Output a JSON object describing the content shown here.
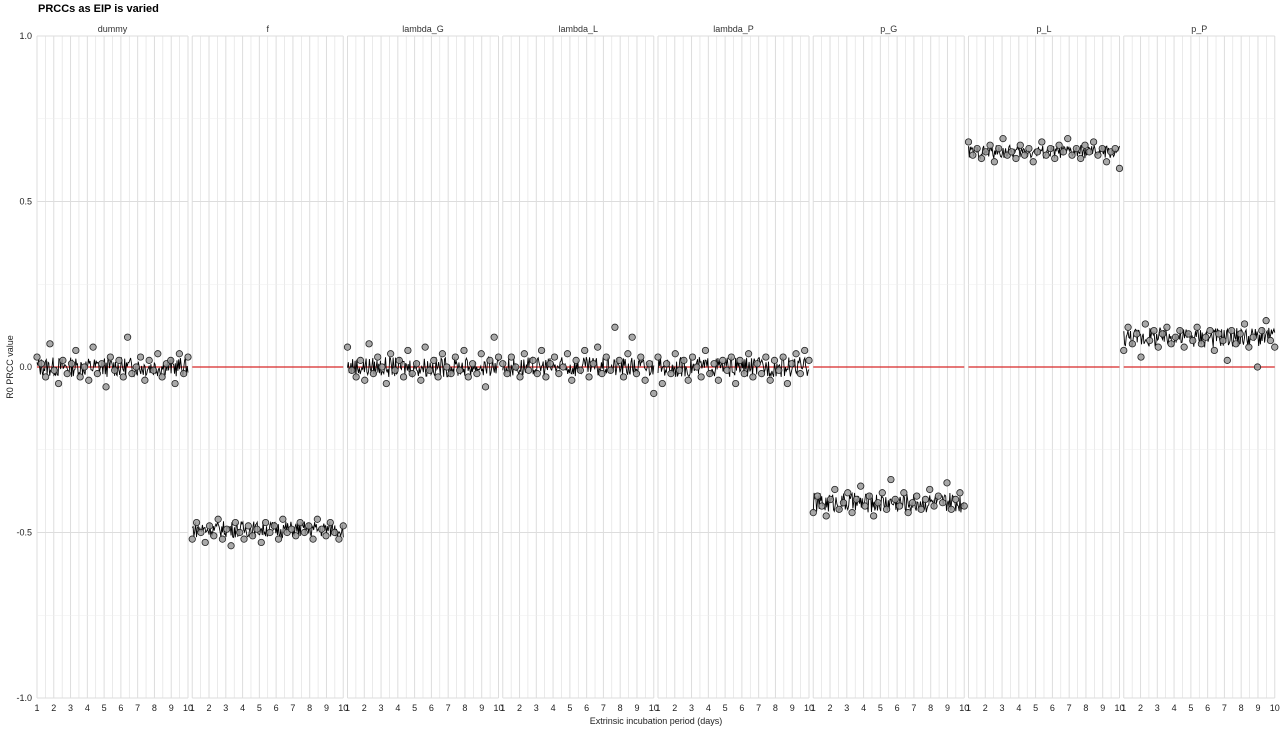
{
  "chart_data": {
    "type": "line",
    "title": "PRCCs as EIP is varied",
    "xlabel": "Extrinsic incubation period (days)",
    "ylabel": "R0 PRCC value",
    "ylim": [
      -1.0,
      1.0
    ],
    "yticks": [
      "1.0",
      "0.5",
      "0.0",
      "-0.5",
      "-1.0"
    ],
    "ytick_values": [
      1.0,
      0.5,
      0.0,
      -0.5,
      -1.0
    ],
    "xlim": [
      1,
      10
    ],
    "xticks": [
      "1",
      "2",
      "3",
      "4",
      "5",
      "6",
      "7",
      "8",
      "9",
      "10"
    ],
    "reference_line": 0.0,
    "colors": {
      "reference": "#d62728",
      "line": "#000000",
      "point_fill": "#9a9a9a",
      "grid": "#dddddd"
    },
    "grid": true,
    "panels": [
      {
        "name": "dummy",
        "mean": 0.0,
        "spread": 0.03,
        "values": [
          0.03,
          0.01,
          -0.03,
          0.07,
          -0.01,
          -0.05,
          0.02,
          -0.02,
          0.01,
          0.05,
          -0.03,
          0.0,
          -0.04,
          0.06,
          -0.02,
          0.01,
          -0.06,
          0.03,
          -0.01,
          0.02,
          -0.03,
          0.09,
          -0.02,
          0.0,
          0.03,
          -0.04,
          0.02,
          -0.01,
          0.04,
          -0.03,
          0.01,
          0.02,
          -0.05,
          0.04,
          -0.02,
          0.03
        ]
      },
      {
        "name": "f",
        "mean": -0.49,
        "spread": 0.025,
        "values": [
          -0.52,
          -0.47,
          -0.5,
          -0.53,
          -0.48,
          -0.51,
          -0.46,
          -0.52,
          -0.49,
          -0.54,
          -0.47,
          -0.5,
          -0.52,
          -0.48,
          -0.51,
          -0.49,
          -0.53,
          -0.47,
          -0.5,
          -0.48,
          -0.52,
          -0.46,
          -0.5,
          -0.49,
          -0.51,
          -0.47,
          -0.5,
          -0.48,
          -0.52,
          -0.46,
          -0.49,
          -0.51,
          -0.47,
          -0.5,
          -0.52,
          -0.48
        ]
      },
      {
        "name": "lambda_G",
        "mean": 0.0,
        "spread": 0.03,
        "values": [
          0.06,
          -0.01,
          -0.03,
          0.02,
          -0.04,
          0.07,
          -0.02,
          0.03,
          0.0,
          -0.05,
          0.04,
          -0.01,
          0.02,
          -0.03,
          0.05,
          -0.02,
          0.01,
          -0.04,
          0.06,
          -0.01,
          0.02,
          -0.03,
          0.04,
          0.0,
          -0.02,
          0.03,
          -0.01,
          0.05,
          -0.03,
          0.01,
          -0.02,
          0.04,
          -0.06,
          0.02,
          0.09,
          0.03
        ]
      },
      {
        "name": "lambda_L",
        "mean": 0.0,
        "spread": 0.03,
        "values": [
          0.01,
          -0.02,
          0.03,
          0.0,
          -0.03,
          0.04,
          -0.01,
          0.02,
          -0.02,
          0.05,
          -0.03,
          0.01,
          0.03,
          -0.02,
          0.0,
          0.04,
          -0.04,
          0.02,
          -0.01,
          0.05,
          -0.03,
          0.01,
          0.06,
          -0.02,
          0.03,
          -0.01,
          0.12,
          0.02,
          -0.03,
          0.04,
          0.09,
          -0.02,
          0.03,
          -0.04,
          0.01,
          -0.08
        ]
      },
      {
        "name": "lambda_P",
        "mean": 0.0,
        "spread": 0.03,
        "values": [
          0.03,
          -0.05,
          0.01,
          -0.02,
          0.04,
          -0.01,
          0.02,
          -0.04,
          0.03,
          0.0,
          -0.03,
          0.05,
          -0.02,
          0.01,
          -0.04,
          0.02,
          -0.01,
          0.03,
          -0.05,
          0.02,
          -0.02,
          0.04,
          -0.03,
          0.01,
          -0.02,
          0.03,
          -0.04,
          0.02,
          -0.01,
          0.03,
          -0.05,
          0.01,
          0.04,
          -0.02,
          0.05,
          0.02
        ]
      },
      {
        "name": "p_G",
        "mean": -0.41,
        "spread": 0.03,
        "values": [
          -0.44,
          -0.39,
          -0.42,
          -0.45,
          -0.4,
          -0.37,
          -0.43,
          -0.41,
          -0.38,
          -0.44,
          -0.4,
          -0.36,
          -0.42,
          -0.39,
          -0.45,
          -0.41,
          -0.38,
          -0.43,
          -0.34,
          -0.4,
          -0.42,
          -0.38,
          -0.44,
          -0.41,
          -0.39,
          -0.43,
          -0.4,
          -0.37,
          -0.42,
          -0.39,
          -0.41,
          -0.35,
          -0.43,
          -0.4,
          -0.38,
          -0.42
        ]
      },
      {
        "name": "p_L",
        "mean": 0.65,
        "spread": 0.02,
        "values": [
          0.68,
          0.64,
          0.66,
          0.63,
          0.65,
          0.67,
          0.62,
          0.66,
          0.69,
          0.64,
          0.65,
          0.63,
          0.67,
          0.64,
          0.66,
          0.62,
          0.65,
          0.68,
          0.64,
          0.66,
          0.63,
          0.67,
          0.65,
          0.69,
          0.64,
          0.66,
          0.63,
          0.67,
          0.65,
          0.68,
          0.64,
          0.66,
          0.62,
          0.65,
          0.66,
          0.6
        ]
      },
      {
        "name": "p_P",
        "mean": 0.09,
        "spread": 0.03,
        "values": [
          0.05,
          0.12,
          0.07,
          0.1,
          0.03,
          0.13,
          0.08,
          0.11,
          0.06,
          0.1,
          0.12,
          0.07,
          0.09,
          0.11,
          0.06,
          0.1,
          0.08,
          0.12,
          0.07,
          0.09,
          0.11,
          0.05,
          0.1,
          0.08,
          0.02,
          0.11,
          0.07,
          0.1,
          0.13,
          0.06,
          0.09,
          0.0,
          0.11,
          0.14,
          0.08,
          0.06
        ]
      }
    ]
  }
}
